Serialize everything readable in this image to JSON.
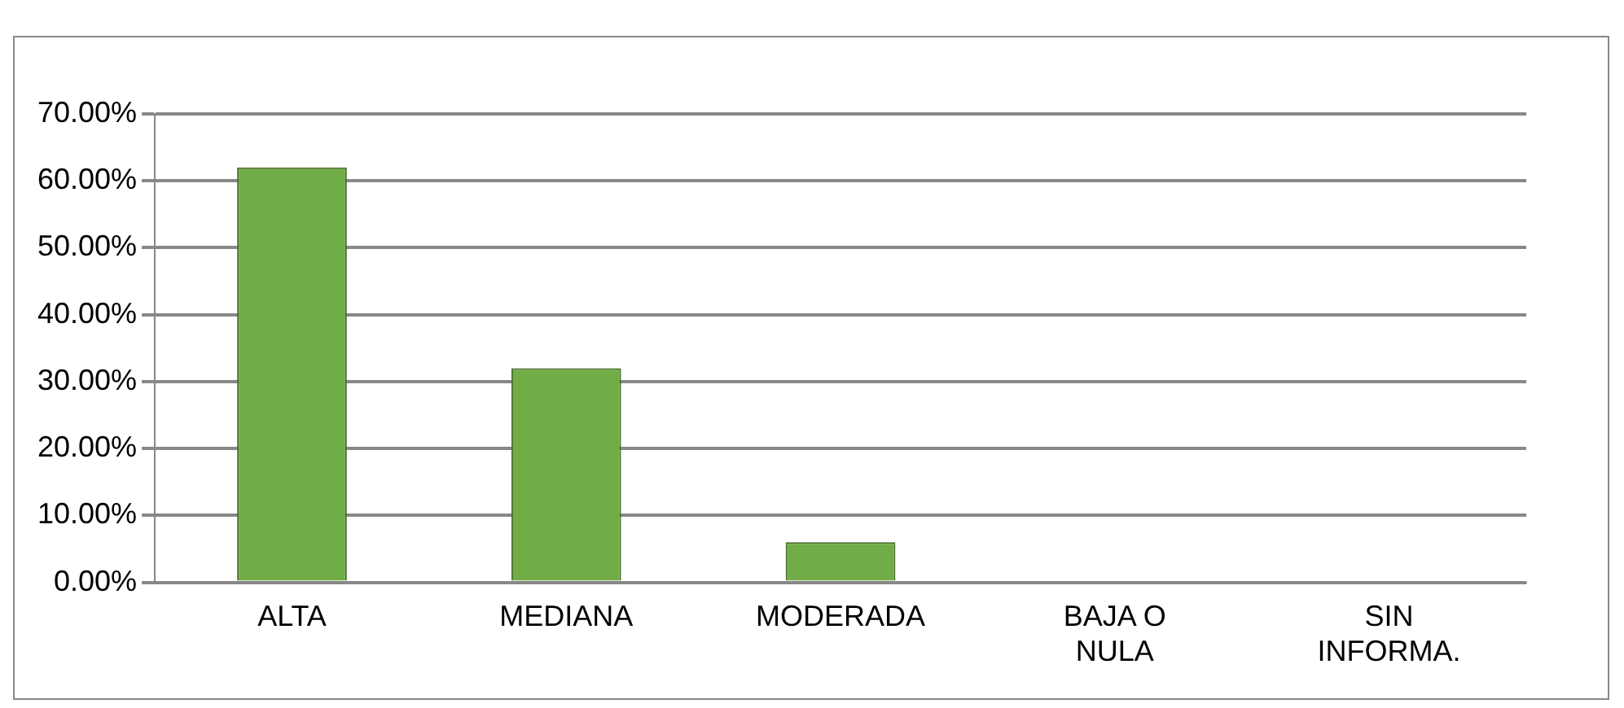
{
  "chart_data": {
    "type": "bar",
    "categories": [
      "ALTA",
      "MEDIANA",
      "MODERADA",
      "BAJA O NULA",
      "SIN INFORMA."
    ],
    "values": [
      62,
      32,
      6,
      0,
      0
    ],
    "color": "#70ad47",
    "ylim": [
      0,
      70
    ],
    "yticks": [
      {
        "value": 0,
        "label": "0.00%"
      },
      {
        "value": 10,
        "label": "10.00%"
      },
      {
        "value": 20,
        "label": "20.00%"
      },
      {
        "value": 30,
        "label": "30.00%"
      },
      {
        "value": 40,
        "label": "40.00%"
      },
      {
        "value": 50,
        "label": "50.00%"
      },
      {
        "value": 60,
        "label": "60.00%"
      },
      {
        "value": 70,
        "label": "70.00%"
      }
    ],
    "grid": "y",
    "legend": false
  }
}
